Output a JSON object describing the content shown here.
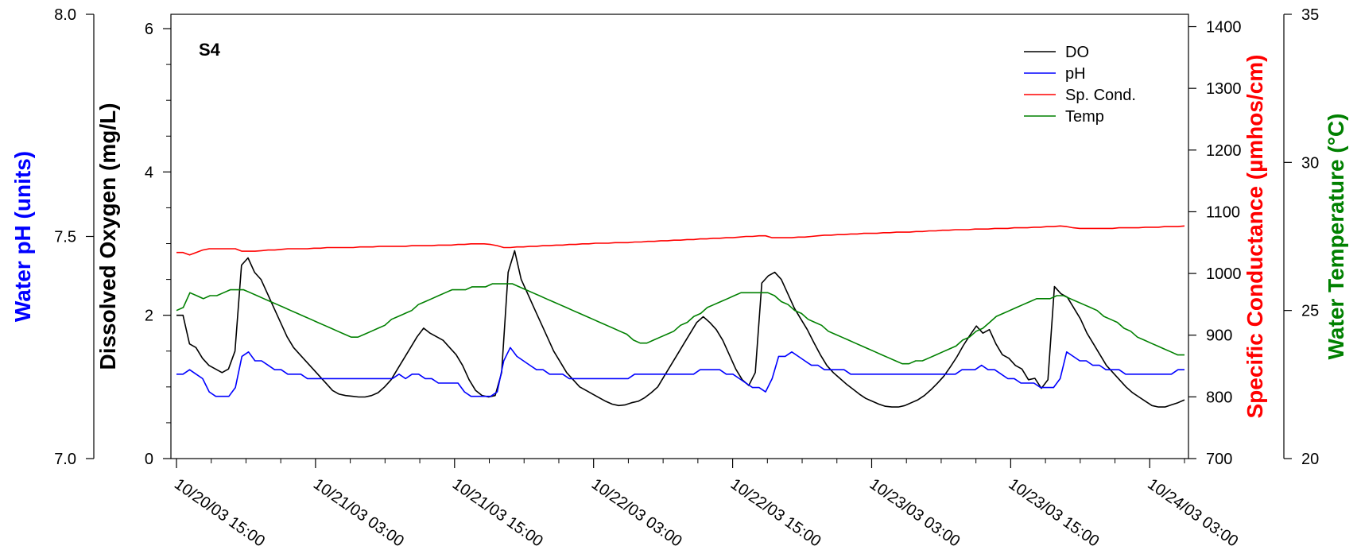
{
  "chart_data": {
    "type": "line",
    "panel_label": "S4",
    "x_ticks": [
      "10/20/03 15:00",
      "10/21/03 03:00",
      "10/21/03 15:00",
      "10/22/03 03:00",
      "10/22/03 15:00",
      "10/23/03 03:00",
      "10/23/03 15:00",
      "10/24/03 03:00"
    ],
    "x_range": [
      "10/20/03 15:00",
      "10/24/03 06:00"
    ],
    "x_step_hours": 1,
    "axes": {
      "do": {
        "label": "Dissolved Oxygen (mg/L)",
        "color": "#000000",
        "range": [
          0,
          6.2
        ],
        "ticks": [
          "0",
          "2",
          "4",
          "6"
        ]
      },
      "ph": {
        "label": "Water pH (units)",
        "color": "#0000ff",
        "range": [
          7.0,
          8.0
        ],
        "ticks": [
          "7.0",
          "7.5",
          "8.0"
        ]
      },
      "cond": {
        "label": "Specific Conductance (µmhos/cm)",
        "color": "#ff0000",
        "range": [
          700,
          1420
        ],
        "ticks": [
          "700",
          "800",
          "900",
          "1000",
          "1100",
          "1200",
          "1300",
          "1400"
        ]
      },
      "temp": {
        "label": "Water Temperature (°C)",
        "color": "#008000",
        "range": [
          20,
          35
        ],
        "ticks": [
          "20",
          "25",
          "30",
          "35"
        ]
      }
    },
    "legend": {
      "position": "top-right",
      "entries": [
        "DO",
        "pH",
        "Sp. Cond.",
        "Temp"
      ]
    },
    "series": [
      {
        "name": "DO",
        "axis": "do",
        "color": "#000000",
        "values": [
          2.0,
          2.0,
          1.6,
          1.55,
          1.4,
          1.3,
          1.25,
          1.2,
          1.25,
          1.5,
          2.7,
          2.8,
          2.6,
          2.5,
          2.3,
          2.1,
          1.9,
          1.7,
          1.55,
          1.45,
          1.35,
          1.25,
          1.15,
          1.05,
          0.95,
          0.9,
          0.88,
          0.87,
          0.86,
          0.86,
          0.88,
          0.92,
          1.0,
          1.1,
          1.25,
          1.4,
          1.55,
          1.7,
          1.82,
          1.75,
          1.7,
          1.65,
          1.55,
          1.45,
          1.3,
          1.1,
          0.95,
          0.88,
          0.86,
          0.88,
          1.2,
          2.6,
          2.9,
          2.5,
          2.3,
          2.1,
          1.9,
          1.7,
          1.5,
          1.35,
          1.2,
          1.1,
          1.0,
          0.95,
          0.9,
          0.85,
          0.8,
          0.76,
          0.74,
          0.75,
          0.78,
          0.8,
          0.85,
          0.92,
          1.0,
          1.15,
          1.3,
          1.45,
          1.6,
          1.75,
          1.9,
          1.98,
          1.9,
          1.8,
          1.65,
          1.45,
          1.25,
          1.1,
          1.02,
          1.2,
          2.45,
          2.55,
          2.6,
          2.5,
          2.3,
          2.1,
          1.95,
          1.8,
          1.62,
          1.45,
          1.3,
          1.2,
          1.12,
          1.04,
          0.97,
          0.9,
          0.84,
          0.8,
          0.76,
          0.73,
          0.72,
          0.72,
          0.74,
          0.78,
          0.82,
          0.88,
          0.96,
          1.05,
          1.15,
          1.28,
          1.42,
          1.58,
          1.72,
          1.85,
          1.75,
          1.8,
          1.6,
          1.45,
          1.4,
          1.3,
          1.25,
          1.1,
          1.12,
          0.98,
          1.1,
          2.4,
          2.3,
          2.25,
          2.1,
          1.95,
          1.75,
          1.6,
          1.45,
          1.3,
          1.2,
          1.1,
          1.0,
          0.92,
          0.86,
          0.8,
          0.74,
          0.72,
          0.72,
          0.75,
          0.78,
          0.82
        ]
      },
      {
        "name": "pH",
        "axis": "ph",
        "color": "#0000ff",
        "values": [
          7.19,
          7.19,
          7.2,
          7.19,
          7.18,
          7.15,
          7.14,
          7.14,
          7.14,
          7.16,
          7.23,
          7.24,
          7.22,
          7.22,
          7.21,
          7.2,
          7.2,
          7.19,
          7.19,
          7.19,
          7.18,
          7.18,
          7.18,
          7.18,
          7.18,
          7.18,
          7.18,
          7.18,
          7.18,
          7.18,
          7.18,
          7.18,
          7.18,
          7.18,
          7.19,
          7.18,
          7.19,
          7.19,
          7.18,
          7.18,
          7.17,
          7.17,
          7.17,
          7.17,
          7.15,
          7.14,
          7.14,
          7.14,
          7.14,
          7.15,
          7.22,
          7.25,
          7.23,
          7.22,
          7.21,
          7.2,
          7.2,
          7.19,
          7.19,
          7.19,
          7.18,
          7.18,
          7.18,
          7.18,
          7.18,
          7.18,
          7.18,
          7.18,
          7.18,
          7.18,
          7.19,
          7.19,
          7.19,
          7.19,
          7.19,
          7.19,
          7.19,
          7.19,
          7.19,
          7.19,
          7.2,
          7.2,
          7.2,
          7.2,
          7.19,
          7.19,
          7.18,
          7.17,
          7.16,
          7.16,
          7.15,
          7.18,
          7.23,
          7.23,
          7.24,
          7.23,
          7.22,
          7.21,
          7.21,
          7.2,
          7.2,
          7.2,
          7.2,
          7.19,
          7.19,
          7.19,
          7.19,
          7.19,
          7.19,
          7.19,
          7.19,
          7.19,
          7.19,
          7.19,
          7.19,
          7.19,
          7.19,
          7.19,
          7.19,
          7.19,
          7.2,
          7.2,
          7.2,
          7.21,
          7.2,
          7.2,
          7.19,
          7.18,
          7.18,
          7.17,
          7.17,
          7.17,
          7.16,
          7.16,
          7.16,
          7.18,
          7.24,
          7.23,
          7.22,
          7.22,
          7.21,
          7.21,
          7.2,
          7.2,
          7.2,
          7.19,
          7.19,
          7.19,
          7.19,
          7.19,
          7.19,
          7.19,
          7.19,
          7.2,
          7.2
        ]
      },
      {
        "name": "Sp. Cond.",
        "axis": "cond",
        "color": "#ff0000",
        "values": [
          1034,
          1034,
          1030,
          1034,
          1038,
          1040,
          1040,
          1040,
          1040,
          1040,
          1036,
          1036,
          1036,
          1037,
          1038,
          1038,
          1039,
          1040,
          1040,
          1040,
          1040,
          1041,
          1041,
          1042,
          1042,
          1042,
          1042,
          1042,
          1043,
          1043,
          1043,
          1044,
          1044,
          1044,
          1044,
          1044,
          1045,
          1045,
          1045,
          1045,
          1046,
          1046,
          1046,
          1047,
          1047,
          1048,
          1048,
          1048,
          1047,
          1045,
          1042,
          1042,
          1043,
          1043,
          1044,
          1044,
          1045,
          1045,
          1046,
          1046,
          1047,
          1047,
          1048,
          1048,
          1049,
          1049,
          1049,
          1050,
          1050,
          1050,
          1051,
          1051,
          1052,
          1052,
          1053,
          1053,
          1054,
          1054,
          1055,
          1055,
          1056,
          1056,
          1057,
          1057,
          1058,
          1058,
          1059,
          1060,
          1060,
          1061,
          1061,
          1058,
          1058,
          1058,
          1058,
          1059,
          1059,
          1060,
          1061,
          1062,
          1062,
          1063,
          1063,
          1064,
          1064,
          1065,
          1065,
          1065,
          1066,
          1066,
          1067,
          1067,
          1067,
          1068,
          1068,
          1069,
          1069,
          1070,
          1070,
          1071,
          1071,
          1071,
          1072,
          1072,
          1072,
          1073,
          1073,
          1073,
          1074,
          1074,
          1074,
          1075,
          1075,
          1076,
          1076,
          1077,
          1076,
          1074,
          1073,
          1073,
          1073,
          1073,
          1073,
          1073,
          1074,
          1074,
          1074,
          1074,
          1075,
          1075,
          1075,
          1076,
          1076,
          1076,
          1077
        ]
      },
      {
        "name": "Temp",
        "axis": "temp",
        "color": "#008000",
        "values": [
          25.0,
          25.1,
          25.6,
          25.5,
          25.4,
          25.5,
          25.5,
          25.6,
          25.7,
          25.7,
          25.7,
          25.6,
          25.5,
          25.4,
          25.3,
          25.2,
          25.1,
          25.0,
          24.9,
          24.8,
          24.7,
          24.6,
          24.5,
          24.4,
          24.3,
          24.2,
          24.1,
          24.1,
          24.2,
          24.3,
          24.4,
          24.5,
          24.7,
          24.8,
          24.9,
          25.0,
          25.2,
          25.3,
          25.4,
          25.5,
          25.6,
          25.7,
          25.7,
          25.7,
          25.8,
          25.8,
          25.8,
          25.9,
          25.9,
          25.9,
          25.9,
          25.8,
          25.7,
          25.6,
          25.5,
          25.4,
          25.3,
          25.2,
          25.1,
          25.0,
          24.9,
          24.8,
          24.7,
          24.6,
          24.5,
          24.4,
          24.3,
          24.2,
          24.0,
          23.9,
          23.9,
          24.0,
          24.1,
          24.2,
          24.3,
          24.5,
          24.6,
          24.8,
          24.9,
          25.1,
          25.2,
          25.3,
          25.4,
          25.5,
          25.6,
          25.6,
          25.6,
          25.6,
          25.6,
          25.5,
          25.3,
          25.2,
          25.0,
          24.9,
          24.7,
          24.6,
          24.5,
          24.3,
          24.2,
          24.1,
          24.0,
          23.9,
          23.8,
          23.7,
          23.6,
          23.5,
          23.4,
          23.3,
          23.2,
          23.2,
          23.3,
          23.3,
          23.4,
          23.5,
          23.6,
          23.7,
          23.8,
          24.0,
          24.1,
          24.3,
          24.4,
          24.6,
          24.8,
          24.9,
          25.0,
          25.1,
          25.2,
          25.3,
          25.4,
          25.4,
          25.4,
          25.5,
          25.5,
          25.4,
          25.3,
          25.2,
          25.1,
          25.0,
          24.8,
          24.7,
          24.6,
          24.4,
          24.3,
          24.1,
          24.0,
          23.9,
          23.8,
          23.7,
          23.6,
          23.5,
          23.5
        ]
      }
    ]
  }
}
